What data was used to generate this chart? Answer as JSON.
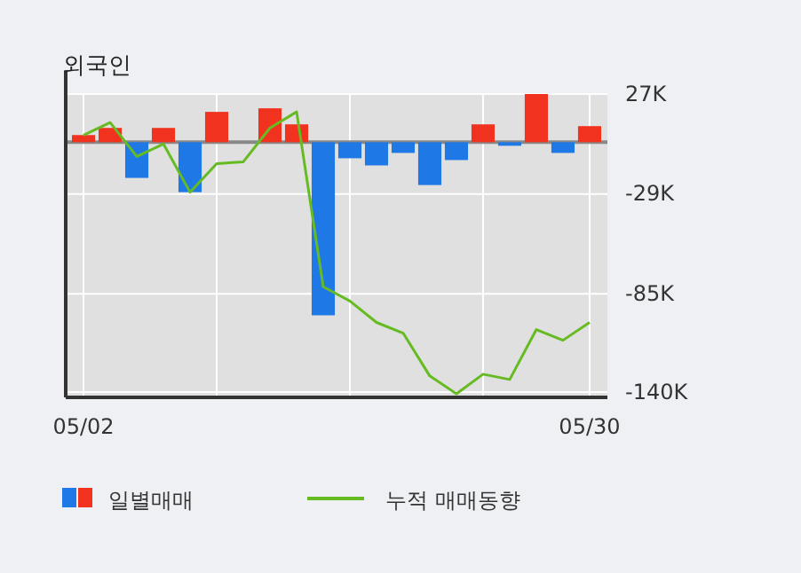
{
  "chart_data": {
    "type": "bar",
    "title": "외국인",
    "categories": [
      "05/02",
      null,
      null,
      null,
      null,
      null,
      null,
      null,
      null,
      null,
      null,
      null,
      null,
      null,
      null,
      null,
      null,
      null,
      null,
      "05/30"
    ],
    "series": [
      {
        "name": "일별매매",
        "colors": [
          "#f0321e",
          "#f0321e",
          "#1e78e6",
          "#f0321e",
          "#1e78e6",
          "#f0321e",
          "#f0321e",
          "#f0321e",
          "#f0321e",
          "#1e78e6",
          "#1e78e6",
          "#1e78e6",
          "#1e78e6",
          "#1e78e6",
          "#1e78e6",
          "#f0321e",
          "#1e78e6",
          "#f0321e",
          "#1e78e6",
          "#f0321e"
        ],
        "values": [
          4,
          8,
          -20,
          8,
          -28,
          17,
          0,
          19,
          10,
          -97,
          -9,
          -13,
          -6,
          -24,
          -10,
          10,
          -2,
          27,
          -6,
          9
        ]
      },
      {
        "name": "누적 매매동향",
        "type": "line",
        "color": "#66bb22",
        "values": [
          4,
          11,
          -8,
          -1,
          -28,
          -12,
          -11,
          8,
          17,
          -81,
          -89,
          -101,
          -107,
          -131,
          -141,
          -130,
          -133,
          -105,
          -111,
          -101
        ]
      }
    ],
    "ylim": [
      -143,
      27
    ],
    "yticks": [
      {
        "value": 27,
        "label": "27K"
      },
      {
        "value": -29,
        "label": "-29K"
      },
      {
        "value": -85,
        "label": "-85K"
      },
      {
        "value": -140,
        "label": "-140K"
      }
    ],
    "grid": true,
    "legend": "bottom"
  }
}
